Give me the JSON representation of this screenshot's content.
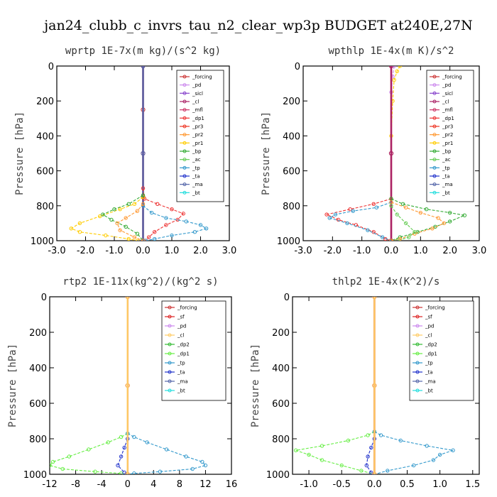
{
  "title": "jan24_clubb_c_invrs_tau_n2_clear_wp3p  BUDGET at240E,27N",
  "colors": {
    "forcing": "#cc3333",
    "pd": "#cc88ee",
    "sicl": "#8844cc",
    "cl": "#aa2266",
    "mfl": "#cc3366",
    "dp1": "#ee3333",
    "pr3": "#ee3322",
    "pr2": "#ff9933",
    "pr1": "#ffcc00",
    "bp": "#33aa33",
    "ac": "#66cc55",
    "tp": "#3399cc",
    "ta": "#2233cc",
    "ma": "#5566aa",
    "bt": "#22dddd",
    "sf": "#dd2222",
    "cl2": "#ffcc66",
    "dp2": "#33bb33",
    "dp1g": "#66ee44"
  },
  "chart_data": [
    {
      "type": "line",
      "title": "wprtp   1E-7x(m kg)/(s^2 kg)",
      "ylabel": "Pressure [hPa]",
      "xlim": [
        -3.0,
        3.0
      ],
      "ylim": [
        1000,
        0
      ],
      "xticks": [
        "-3.0",
        "-2.0",
        "-1.0",
        "0.0",
        "1.0",
        "2.0",
        "3.0"
      ],
      "xtick_values": [
        -3,
        -2,
        -1,
        0,
        1,
        2,
        3
      ],
      "yticks": [
        "0",
        "200",
        "400",
        "600",
        "800",
        "1000"
      ],
      "ytick_values": [
        0,
        200,
        400,
        600,
        800,
        1000
      ],
      "legend": [
        "_forcing",
        "_pd",
        "_sicl",
        "_cl",
        "_mfl",
        "_dp1",
        "_pr3",
        "_pr2",
        "_pr1",
        "_bp",
        "_ac",
        "_tp",
        "_ta",
        "_ma",
        "_bt"
      ],
      "legend_keys": [
        "forcing",
        "pd",
        "sicl",
        "cl",
        "mfl",
        "dp1",
        "pr3",
        "pr2",
        "pr1",
        "bp",
        "ac",
        "tp",
        "ta",
        "ma",
        "bt"
      ],
      "legend_box": "top-right",
      "series": [
        {
          "key": "forcing",
          "points": [
            [
              0,
              0
            ],
            [
              0,
              250
            ],
            [
              0,
              500
            ],
            [
              0,
              750
            ],
            [
              0,
              1000
            ]
          ]
        },
        {
          "key": "cl",
          "points": [
            [
              0,
              0
            ],
            [
              0,
              500
            ],
            [
              0,
              1000
            ]
          ]
        },
        {
          "key": "ma",
          "points": [
            [
              0,
              0
            ],
            [
              0,
              500
            ],
            [
              0,
              1000
            ]
          ]
        },
        {
          "key": "dp1",
          "points": [
            [
              0,
              700
            ],
            [
              0.05,
              760
            ],
            [
              0.5,
              790
            ],
            [
              1.0,
              820
            ],
            [
              1.4,
              845
            ],
            [
              1.2,
              880
            ],
            [
              0.8,
              910
            ],
            [
              0.4,
              950
            ],
            [
              0.2,
              980
            ],
            [
              0.1,
              1000
            ]
          ]
        },
        {
          "key": "pr1",
          "points": [
            [
              0,
              750
            ],
            [
              -0.3,
              790
            ],
            [
              -0.8,
              820
            ],
            [
              -1.5,
              860
            ],
            [
              -2.2,
              900
            ],
            [
              -2.5,
              930
            ],
            [
              -2.2,
              950
            ],
            [
              -1.3,
              970
            ],
            [
              -0.5,
              990
            ],
            [
              -0.2,
              1000
            ]
          ]
        },
        {
          "key": "bp",
          "points": [
            [
              0,
              740
            ],
            [
              -0.5,
              790
            ],
            [
              -1.0,
              820
            ],
            [
              -1.4,
              850
            ],
            [
              -1.1,
              880
            ],
            [
              -0.6,
              920
            ],
            [
              -0.2,
              960
            ],
            [
              0,
              1000
            ]
          ]
        },
        {
          "key": "tp",
          "points": [
            [
              0,
              800
            ],
            [
              0.3,
              840
            ],
            [
              0.8,
              870
            ],
            [
              1.5,
              890
            ],
            [
              2.0,
              910
            ],
            [
              2.2,
              930
            ],
            [
              1.8,
              950
            ],
            [
              1.0,
              970
            ],
            [
              0.4,
              990
            ],
            [
              0.1,
              1000
            ]
          ]
        },
        {
          "key": "pr2",
          "points": [
            [
              0,
              790
            ],
            [
              -0.2,
              830
            ],
            [
              -0.6,
              870
            ],
            [
              -0.9,
              900
            ],
            [
              -0.8,
              940
            ],
            [
              -0.3,
              980
            ],
            [
              0,
              1000
            ]
          ]
        }
      ]
    },
    {
      "type": "line",
      "title": "wpthlp   1E-4x(m K)/s^2",
      "ylabel": "Pressure [hPa]",
      "xlim": [
        -3.0,
        3.0
      ],
      "ylim": [
        1000,
        0
      ],
      "xticks": [
        "-3.0",
        "-2.0",
        "-1.0",
        "0.0",
        "1.0",
        "2.0",
        "3.0"
      ],
      "xtick_values": [
        -3,
        -2,
        -1,
        0,
        1,
        2,
        3
      ],
      "yticks": [
        "0",
        "200",
        "400",
        "600",
        "800",
        "1000"
      ],
      "ytick_values": [
        0,
        200,
        400,
        600,
        800,
        1000
      ],
      "legend": [
        "_forcing",
        "_pd",
        "_sicl",
        "_cl",
        "_mfl",
        "_dp1",
        "_pr3",
        "_pr2",
        "_pr1",
        "_bp",
        "_ac",
        "_tp",
        "_ta",
        "_ma",
        "_bt"
      ],
      "legend_keys": [
        "forcing",
        "pd",
        "sicl",
        "cl",
        "mfl",
        "dp1",
        "pr3",
        "pr2",
        "pr1",
        "bp",
        "ac",
        "tp",
        "ta",
        "ma",
        "bt"
      ],
      "legend_box": "top-right",
      "series": [
        {
          "key": "forcing",
          "points": [
            [
              0,
              0
            ],
            [
              0,
              500
            ],
            [
              0,
              1000
            ]
          ]
        },
        {
          "key": "pd",
          "points": [
            [
              0.1,
              0
            ],
            [
              0.05,
              60
            ],
            [
              0,
              150
            ],
            [
              0,
              1000
            ]
          ]
        },
        {
          "key": "pr1",
          "points": [
            [
              0.3,
              0
            ],
            [
              0.2,
              30
            ],
            [
              0.1,
              80
            ],
            [
              0.05,
              200
            ],
            [
              0,
              400
            ],
            [
              0,
              1000
            ]
          ]
        },
        {
          "key": "cl",
          "points": [
            [
              0,
              0
            ],
            [
              0,
              500
            ],
            [
              0,
              1000
            ]
          ]
        },
        {
          "key": "dp1",
          "points": [
            [
              0,
              760
            ],
            [
              -0.6,
              790
            ],
            [
              -1.4,
              820
            ],
            [
              -2.2,
              850
            ],
            [
              -1.8,
              880
            ],
            [
              -1.2,
              910
            ],
            [
              -0.6,
              950
            ],
            [
              -0.2,
              990
            ],
            [
              0,
              1000
            ]
          ]
        },
        {
          "key": "tp",
          "points": [
            [
              0,
              780
            ],
            [
              -0.5,
              810
            ],
            [
              -1.3,
              830
            ],
            [
              -1.9,
              850
            ],
            [
              -2.1,
              870
            ],
            [
              -1.5,
              900
            ],
            [
              -0.8,
              940
            ],
            [
              -0.3,
              980
            ],
            [
              0,
              1000
            ]
          ]
        },
        {
          "key": "bp",
          "points": [
            [
              0,
              760
            ],
            [
              0.4,
              790
            ],
            [
              1.2,
              820
            ],
            [
              2.0,
              840
            ],
            [
              2.5,
              855
            ],
            [
              2.0,
              890
            ],
            [
              1.5,
              920
            ],
            [
              0.9,
              950
            ],
            [
              0.3,
              980
            ],
            [
              0,
              1000
            ]
          ]
        },
        {
          "key": "pr2",
          "points": [
            [
              0,
              780
            ],
            [
              0.5,
              810
            ],
            [
              1.0,
              840
            ],
            [
              1.6,
              870
            ],
            [
              1.8,
              900
            ],
            [
              1.4,
              930
            ],
            [
              0.8,
              960
            ],
            [
              0.3,
              990
            ],
            [
              0,
              1000
            ]
          ]
        },
        {
          "key": "ac",
          "points": [
            [
              0,
              800
            ],
            [
              0.2,
              850
            ],
            [
              0.5,
              900
            ],
            [
              0.8,
              950
            ],
            [
              0.6,
              980
            ],
            [
              0.2,
              1000
            ]
          ]
        }
      ]
    },
    {
      "type": "line",
      "title": "rtp2   1E-11x(kg^2)/(kg^2 s)",
      "ylabel": "Pressure [hPa]",
      "xlim": [
        -12,
        16
      ],
      "ylim": [
        1000,
        0
      ],
      "xticks": [
        "-12",
        "-8",
        "-4",
        "0",
        "4",
        "8",
        "12",
        "16"
      ],
      "xtick_values": [
        -12,
        -8,
        -4,
        0,
        4,
        8,
        12,
        16
      ],
      "yticks": [
        "0",
        "200",
        "400",
        "600",
        "800",
        "1000"
      ],
      "ytick_values": [
        0,
        200,
        400,
        600,
        800,
        1000
      ],
      "legend": [
        "_forcing",
        "_sf",
        "_pd",
        "_cl",
        "_dp2",
        "_dp1",
        "_tp",
        "_ta",
        "_ma",
        "_bt"
      ],
      "legend_keys": [
        "forcing",
        "sf",
        "pd",
        "cl2",
        "dp2",
        "dp1g",
        "tp",
        "ta",
        "ma",
        "bt"
      ],
      "legend_box": "top-right",
      "series": [
        {
          "key": "dp1g",
          "points": [
            [
              0,
              770
            ],
            [
              -1,
              790
            ],
            [
              -3,
              820
            ],
            [
              -6,
              860
            ],
            [
              -9,
              900
            ],
            [
              -11.5,
              930
            ],
            [
              -12,
              950
            ],
            [
              -10,
              970
            ],
            [
              -5,
              985
            ],
            [
              -1,
              995
            ],
            [
              0,
              1000
            ]
          ]
        },
        {
          "key": "tp",
          "points": [
            [
              0,
              770
            ],
            [
              1,
              790
            ],
            [
              3,
              820
            ],
            [
              6,
              860
            ],
            [
              9,
              900
            ],
            [
              11.5,
              930
            ],
            [
              12,
              950
            ],
            [
              10,
              970
            ],
            [
              5,
              985
            ],
            [
              1,
              995
            ],
            [
              0,
              1000
            ]
          ]
        },
        {
          "key": "ta",
          "points": [
            [
              0,
              800
            ],
            [
              -0.5,
              850
            ],
            [
              -1,
              900
            ],
            [
              -1.5,
              950
            ],
            [
              -0.5,
              990
            ],
            [
              0,
              1000
            ]
          ]
        },
        {
          "key": "forcing",
          "points": [
            [
              0,
              0
            ],
            [
              0,
              500
            ],
            [
              0,
              1000
            ]
          ]
        },
        {
          "key": "sf",
          "points": [
            [
              0,
              0
            ],
            [
              0,
              500
            ],
            [
              0,
              1000
            ]
          ]
        },
        {
          "key": "cl2",
          "points": [
            [
              0,
              0
            ],
            [
              0,
              500
            ],
            [
              0,
              1000
            ]
          ]
        }
      ]
    },
    {
      "type": "line",
      "title": "thlp2   1E-4x(K^2)/s",
      "ylabel": "Pressure [hPa]",
      "xlim": [
        -1.25,
        1.6
      ],
      "ylim": [
        1000,
        0
      ],
      "xticks": [
        "-1.0",
        "-0.5",
        "0.0",
        "0.5",
        "1.0",
        "1.5"
      ],
      "xtick_values": [
        -1.0,
        -0.5,
        0.0,
        0.5,
        1.0,
        1.5
      ],
      "yticks": [
        "0",
        "200",
        "400",
        "600",
        "800",
        "1000"
      ],
      "ytick_values": [
        0,
        200,
        400,
        600,
        800,
        1000
      ],
      "legend": [
        "_forcing",
        "_sf",
        "_pd",
        "_cl",
        "_dp2",
        "_dp1",
        "_tp",
        "_ta",
        "_ma",
        "_bt"
      ],
      "legend_keys": [
        "forcing",
        "sf",
        "pd",
        "cl2",
        "dp2",
        "dp1g",
        "tp",
        "ta",
        "ma",
        "bt"
      ],
      "legend_box": "top-right",
      "series": [
        {
          "key": "dp1g",
          "points": [
            [
              0,
              760
            ],
            [
              -0.1,
              780
            ],
            [
              -0.4,
              810
            ],
            [
              -0.8,
              840
            ],
            [
              -1.2,
              865
            ],
            [
              -1.0,
              890
            ],
            [
              -0.8,
              920
            ],
            [
              -0.5,
              950
            ],
            [
              -0.2,
              980
            ],
            [
              0,
              1000
            ]
          ]
        },
        {
          "key": "tp",
          "points": [
            [
              0,
              760
            ],
            [
              0.1,
              780
            ],
            [
              0.4,
              810
            ],
            [
              0.8,
              840
            ],
            [
              1.2,
              865
            ],
            [
              1.0,
              890
            ],
            [
              0.9,
              920
            ],
            [
              0.6,
              950
            ],
            [
              0.2,
              980
            ],
            [
              0,
              1000
            ]
          ]
        },
        {
          "key": "ta",
          "points": [
            [
              0,
              800
            ],
            [
              -0.05,
              850
            ],
            [
              -0.1,
              900
            ],
            [
              -0.12,
              950
            ],
            [
              -0.05,
              990
            ],
            [
              0,
              1000
            ]
          ]
        },
        {
          "key": "forcing",
          "points": [
            [
              0,
              0
            ],
            [
              0,
              500
            ],
            [
              0,
              1000
            ]
          ]
        },
        {
          "key": "sf",
          "points": [
            [
              0,
              0
            ],
            [
              0,
              500
            ],
            [
              0,
              1000
            ]
          ]
        },
        {
          "key": "cl2",
          "points": [
            [
              0,
              0
            ],
            [
              0,
              500
            ],
            [
              0,
              1000
            ]
          ]
        }
      ]
    }
  ]
}
